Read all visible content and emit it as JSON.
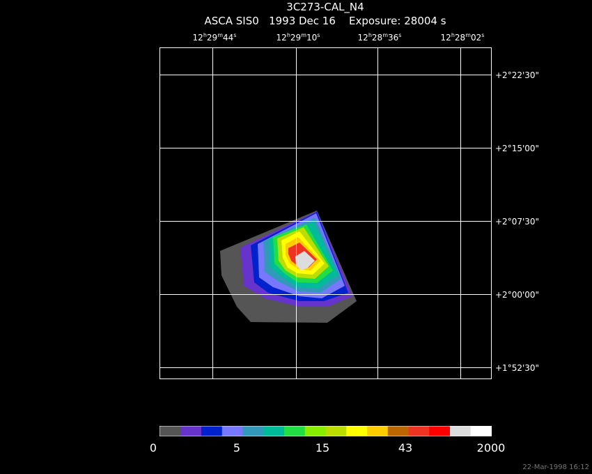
{
  "header": {
    "title": "3C273-CAL_N4",
    "subtitle": "ASCA SIS0   1993 Dec 16    Exposure: 28004 s"
  },
  "ra_labels": [
    [
      "12",
      "h",
      "29",
      "m",
      "44",
      "s"
    ],
    [
      "12",
      "h",
      "29",
      "m",
      "10",
      "s"
    ],
    [
      "12",
      "h",
      "28",
      "m",
      "36",
      "s"
    ],
    [
      "12",
      "h",
      "28",
      "m",
      "02",
      "s"
    ]
  ],
  "dec_labels": [
    "+2°22'30\"",
    "+2°15'00\"",
    "+2°07'30\"",
    "+2°00'00\"",
    "+1°52'30\""
  ],
  "colorbar": {
    "colors": [
      "#555555",
      "#6633cc",
      "#0022cc",
      "#7777ff",
      "#3399bb",
      "#00bb99",
      "#22dd44",
      "#88ee00",
      "#bbdd00",
      "#ffff00",
      "#ffcc00",
      "#bb6600",
      "#ee3322",
      "#ff0000",
      "#dddddd",
      "#ffffff"
    ],
    "labels": [
      "0",
      "5",
      "15",
      "43",
      "2000"
    ]
  },
  "footer": "22-Mar-1998 16:12"
}
